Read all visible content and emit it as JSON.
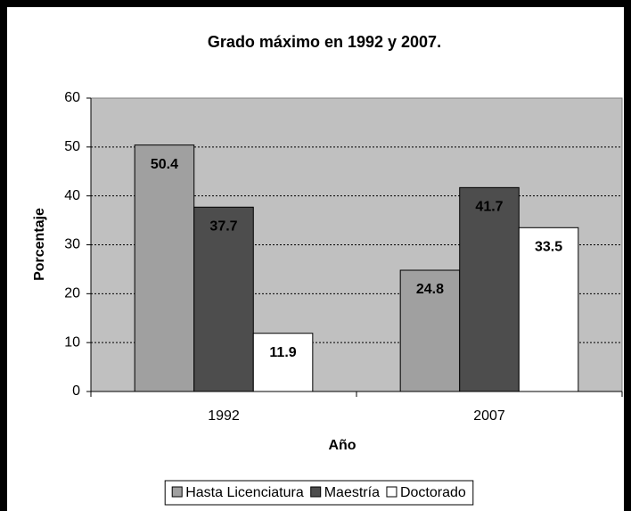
{
  "chart_data": {
    "type": "bar",
    "title": "Grado máximo en 1992 y 2007.",
    "x_label": "Año",
    "y_label": "Porcentaje",
    "categories": [
      "1992",
      "2007"
    ],
    "series": [
      {
        "name": "Hasta Licenciatura",
        "color": "#a0a0a0",
        "values": [
          50.4,
          24.8
        ]
      },
      {
        "name": "Maestría",
        "color": "#4d4d4d",
        "values": [
          37.7,
          41.7
        ]
      },
      {
        "name": "Doctorado",
        "color": "#ffffff",
        "values": [
          11.9,
          33.5
        ]
      }
    ],
    "ylim": [
      0,
      60
    ],
    "yticks": [
      0,
      10,
      20,
      30,
      40,
      50,
      60
    ],
    "grid": true,
    "legend": "bottom",
    "plot_background": "#c0c0c0"
  }
}
